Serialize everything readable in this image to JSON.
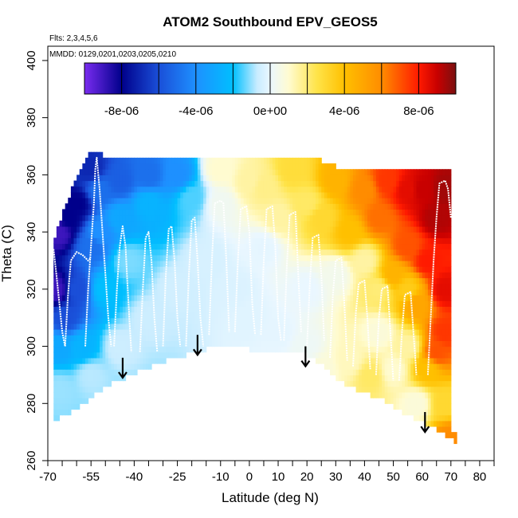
{
  "chart_data": {
    "type": "heatmap",
    "title": "ATOM2 Southbound EPV_GEOS5",
    "notes": [
      "Flts: 2,3,4,5,6",
      "MMDD: 0129,0201,0203,0205,0210"
    ],
    "xlabel": "Latitude (deg N)",
    "ylabel": "Theta (C)",
    "xlim": [
      -70,
      85
    ],
    "ylim": [
      260,
      405
    ],
    "x_ticks": [
      -70,
      -65,
      -60,
      -55,
      -50,
      -45,
      -40,
      -35,
      -30,
      -25,
      -20,
      -15,
      -10,
      -5,
      0,
      5,
      10,
      15,
      20,
      25,
      30,
      35,
      40,
      45,
      50,
      55,
      60,
      65,
      70,
      75,
      80,
      85
    ],
    "x_tick_labels": [
      {
        "value": -70,
        "label": "-70"
      },
      {
        "value": -55,
        "label": "-55"
      },
      {
        "value": -40,
        "label": "-40"
      },
      {
        "value": -25,
        "label": "-25"
      },
      {
        "value": -10,
        "label": "-10"
      },
      {
        "value": 0,
        "label": "0"
      },
      {
        "value": 10,
        "label": "10"
      },
      {
        "value": 20,
        "label": "20"
      },
      {
        "value": 30,
        "label": "30"
      },
      {
        "value": 40,
        "label": "40"
      },
      {
        "value": 50,
        "label": "50"
      },
      {
        "value": 60,
        "label": "60"
      },
      {
        "value": 70,
        "label": "70"
      },
      {
        "value": 80,
        "label": "80"
      }
    ],
    "y_ticks": [
      {
        "value": 260,
        "label": "260"
      },
      {
        "value": 280,
        "label": "280"
      },
      {
        "value": 300,
        "label": "300"
      },
      {
        "value": 320,
        "label": "320"
      },
      {
        "value": 340,
        "label": "340"
      },
      {
        "value": 360,
        "label": "360"
      },
      {
        "value": 380,
        "label": "380"
      },
      {
        "value": 400,
        "label": "400"
      }
    ],
    "colorbar": {
      "min": -1e-05,
      "max": 1e-05,
      "boundaries": [
        -1e-05,
        -8e-06,
        -6e-06,
        -4e-06,
        -2e-06,
        0,
        2e-06,
        4e-06,
        6e-06,
        8e-06,
        1e-05
      ],
      "tick_labels": [
        {
          "value": -8e-06,
          "label": "-8e-06"
        },
        {
          "value": -4e-06,
          "label": "-4e-06"
        },
        {
          "value": 0,
          "label": "0e+00"
        },
        {
          "value": 4e-06,
          "label": "4e-06"
        },
        {
          "value": 8e-06,
          "label": "8e-06"
        }
      ],
      "stops": [
        {
          "value": -1e-05,
          "color": "#7a2cf0"
        },
        {
          "value": -8e-06,
          "color": "#00008b"
        },
        {
          "value": -6e-06,
          "color": "#1a4fd8"
        },
        {
          "value": -4e-06,
          "color": "#1e90ff"
        },
        {
          "value": -2e-06,
          "color": "#00bfff"
        },
        {
          "value": -7e-07,
          "color": "#c8ecff"
        },
        {
          "value": 0,
          "color": "#eaf7ff"
        },
        {
          "value": 1e-06,
          "color": "#fffbd0"
        },
        {
          "value": 2.5e-06,
          "color": "#ffe44a"
        },
        {
          "value": 4e-06,
          "color": "#ffc000"
        },
        {
          "value": 6e-06,
          "color": "#ff8c00"
        },
        {
          "value": 8e-06,
          "color": "#ff1a00"
        },
        {
          "value": 9e-06,
          "color": "#c80000"
        },
        {
          "value": 1e-05,
          "color": "#7a1010"
        }
      ]
    },
    "domain_bottom_theta": [
      [
        -68,
        274
      ],
      [
        -62,
        277
      ],
      [
        -55,
        282
      ],
      [
        -48,
        287
      ],
      [
        -41,
        290
      ],
      [
        -34,
        293
      ],
      [
        -26,
        296
      ],
      [
        -18,
        298
      ],
      [
        -10,
        300.5
      ],
      [
        -5,
        300
      ],
      [
        0,
        299
      ],
      [
        10,
        298.5
      ],
      [
        18,
        298
      ],
      [
        25,
        294
      ],
      [
        30,
        289
      ],
      [
        35,
        286
      ],
      [
        45,
        282
      ],
      [
        55,
        276
      ],
      [
        65,
        271
      ],
      [
        72,
        266
      ]
    ],
    "domain_top_theta": [
      [
        -68,
        336
      ],
      [
        -64,
        348
      ],
      [
        -60,
        358
      ],
      [
        -56,
        366
      ],
      [
        -53,
        368
      ],
      [
        -51,
        366
      ],
      [
        -45,
        366
      ],
      [
        -38,
        366
      ],
      [
        -34,
        366
      ],
      [
        -28,
        366
      ],
      [
        -18,
        366
      ],
      [
        -10,
        365
      ],
      [
        0,
        364
      ],
      [
        10,
        365
      ],
      [
        20,
        366
      ],
      [
        30,
        362
      ],
      [
        40,
        362
      ],
      [
        50,
        362
      ],
      [
        60,
        362
      ],
      [
        68,
        362
      ],
      [
        70,
        362
      ]
    ],
    "epv_anchors": [
      {
        "lat": -67,
        "theta": 320,
        "value": -9e-06
      },
      {
        "lat": -66,
        "theta": 340,
        "value": -9e-06
      },
      {
        "lat": -63,
        "theta": 345,
        "value": -8e-06
      },
      {
        "lat": -60,
        "theta": 350,
        "value": -8e-06
      },
      {
        "lat": -55,
        "theta": 362,
        "value": -7e-06
      },
      {
        "lat": -52,
        "theta": 355,
        "value": -5e-06
      },
      {
        "lat": -45,
        "theta": 358,
        "value": -5.5e-06
      },
      {
        "lat": -35,
        "theta": 360,
        "value": -5e-06
      },
      {
        "lat": -25,
        "theta": 360,
        "value": -4e-06
      },
      {
        "lat": -64,
        "theta": 310,
        "value": -6e-06
      },
      {
        "lat": -60,
        "theta": 320,
        "value": -6e-06
      },
      {
        "lat": -55,
        "theta": 335,
        "value": -5e-06
      },
      {
        "lat": -52,
        "theta": 340,
        "value": -4e-06
      },
      {
        "lat": -45,
        "theta": 345,
        "value": -3e-06
      },
      {
        "lat": -35,
        "theta": 350,
        "value": -2.5e-06
      },
      {
        "lat": -20,
        "theta": 352,
        "value": -1.5e-06
      },
      {
        "lat": -66,
        "theta": 300,
        "value": -3e-06
      },
      {
        "lat": -58,
        "theta": 300,
        "value": -2.5e-06
      },
      {
        "lat": -50,
        "theta": 320,
        "value": -2e-06
      },
      {
        "lat": -42,
        "theta": 330,
        "value": -1.2e-06
      },
      {
        "lat": -66,
        "theta": 285,
        "value": -1e-06
      },
      {
        "lat": -55,
        "theta": 290,
        "value": -8e-07
      },
      {
        "lat": -45,
        "theta": 300,
        "value": -6e-07
      },
      {
        "lat": -35,
        "theta": 310,
        "value": -6e-07
      },
      {
        "lat": -25,
        "theta": 320,
        "value": -5e-07
      },
      {
        "lat": -15,
        "theta": 330,
        "value": -4e-07
      },
      {
        "lat": -5,
        "theta": 320,
        "value": -3e-07
      },
      {
        "lat": 0,
        "theta": 310,
        "value": -2e-07
      },
      {
        "lat": 5,
        "theta": 335,
        "value": -1e-07
      },
      {
        "lat": -10,
        "theta": 350,
        "value": 3e-07
      },
      {
        "lat": -10,
        "theta": 362,
        "value": 1e-06
      },
      {
        "lat": 0,
        "theta": 358,
        "value": 1.5e-06
      },
      {
        "lat": 5,
        "theta": 356,
        "value": 1.8e-06
      },
      {
        "lat": 10,
        "theta": 345,
        "value": 1.5e-06
      },
      {
        "lat": 15,
        "theta": 362,
        "value": 2.8e-06
      },
      {
        "lat": 20,
        "theta": 350,
        "value": 2.2e-06
      },
      {
        "lat": 25,
        "theta": 345,
        "value": 3e-06
      },
      {
        "lat": 30,
        "theta": 358,
        "value": 4.5e-06
      },
      {
        "lat": 35,
        "theta": 340,
        "value": 4e-06
      },
      {
        "lat": 40,
        "theta": 355,
        "value": 6e-06
      },
      {
        "lat": 45,
        "theta": 345,
        "value": 6.5e-06
      },
      {
        "lat": 48,
        "theta": 358,
        "value": 7.5e-06
      },
      {
        "lat": 55,
        "theta": 355,
        "value": 8.5e-06
      },
      {
        "lat": 60,
        "theta": 355,
        "value": 9e-06
      },
      {
        "lat": 65,
        "theta": 345,
        "value": 9.3e-06
      },
      {
        "lat": 68,
        "theta": 355,
        "value": 9.5e-06
      },
      {
        "lat": 55,
        "theta": 335,
        "value": 7e-06
      },
      {
        "lat": 62,
        "theta": 330,
        "value": 8e-06
      },
      {
        "lat": 68,
        "theta": 320,
        "value": 8.5e-06
      },
      {
        "lat": 68,
        "theta": 305,
        "value": 7.5e-06
      },
      {
        "lat": 65,
        "theta": 298,
        "value": 7e-06
      },
      {
        "lat": 62,
        "theta": 292,
        "value": 4e-06
      },
      {
        "lat": 50,
        "theta": 325,
        "value": 4.5e-06
      },
      {
        "lat": 58,
        "theta": 315,
        "value": 5e-06
      },
      {
        "lat": 45,
        "theta": 320,
        "value": 2e-06
      },
      {
        "lat": 40,
        "theta": 330,
        "value": 1.5e-06
      },
      {
        "lat": 30,
        "theta": 325,
        "value": 4e-07
      },
      {
        "lat": 20,
        "theta": 320,
        "value": 0
      },
      {
        "lat": 20,
        "theta": 300,
        "value": 2e-07
      },
      {
        "lat": 25,
        "theta": 292,
        "value": 8e-07
      },
      {
        "lat": 35,
        "theta": 295,
        "value": 1.2e-06
      },
      {
        "lat": 42,
        "theta": 290,
        "value": 2.2e-06
      },
      {
        "lat": 50,
        "theta": 292,
        "value": 1e-06
      },
      {
        "lat": 55,
        "theta": 300,
        "value": 1.5e-06
      },
      {
        "lat": 58,
        "theta": 280,
        "value": 8e-07
      },
      {
        "lat": 68,
        "theta": 280,
        "value": 3e-06
      },
      {
        "lat": 70,
        "theta": 268,
        "value": 6e-06
      },
      {
        "lat": 45,
        "theta": 305,
        "value": 8e-07
      },
      {
        "lat": 55,
        "theta": 320,
        "value": 3.5e-06
      },
      {
        "lat": 10,
        "theta": 305,
        "value": -1e-07
      }
    ],
    "arrows": [
      {
        "lat": -44,
        "theta_top": 296,
        "theta_tip": 289
      },
      {
        "lat": -18,
        "theta_top": 304,
        "theta_tip": 297
      },
      {
        "lat": 19.5,
        "theta_top": 300,
        "theta_tip": 293
      },
      {
        "lat": 61,
        "theta_top": 277,
        "theta_tip": 270
      }
    ],
    "flight_tracks": [
      [
        [
          -68,
          334
        ],
        [
          -67,
          325
        ],
        [
          -66,
          315
        ],
        [
          -65,
          305
        ],
        [
          -64,
          300
        ]
      ],
      [
        [
          -64,
          300
        ],
        [
          -63,
          318
        ],
        [
          -62,
          330
        ],
        [
          -60,
          333
        ],
        [
          -58,
          332
        ],
        [
          -56,
          330
        ],
        [
          -55,
          331
        ]
      ],
      [
        [
          -57,
          300
        ],
        [
          -56,
          320
        ],
        [
          -55,
          335
        ],
        [
          -54,
          350
        ],
        [
          -53.5,
          362
        ],
        [
          -53,
          366
        ],
        [
          -52,
          355
        ],
        [
          -51,
          340
        ],
        [
          -50,
          325
        ],
        [
          -49,
          310
        ],
        [
          -48,
          300
        ]
      ],
      [
        [
          -47,
          300
        ],
        [
          -46,
          320
        ],
        [
          -45,
          335
        ],
        [
          -44,
          342
        ],
        [
          -43,
          335
        ],
        [
          -42,
          315
        ],
        [
          -41,
          298
        ]
      ],
      [
        [
          -38,
          298
        ],
        [
          -37,
          320
        ],
        [
          -36,
          338
        ],
        [
          -35,
          340
        ],
        [
          -34,
          330
        ],
        [
          -33,
          310
        ],
        [
          -32,
          298
        ]
      ],
      [
        [
          -30,
          300
        ],
        [
          -29,
          325
        ],
        [
          -28,
          341
        ],
        [
          -27,
          342
        ],
        [
          -26,
          330
        ],
        [
          -25,
          310
        ],
        [
          -24,
          300
        ]
      ],
      [
        [
          -22,
          300
        ],
        [
          -21,
          325
        ],
        [
          -20,
          344
        ],
        [
          -19,
          345
        ],
        [
          -18,
          330
        ],
        [
          -17,
          310
        ],
        [
          -16,
          300
        ]
      ],
      [
        [
          -14,
          304
        ],
        [
          -13,
          330
        ],
        [
          -12,
          350
        ],
        [
          -10,
          351
        ],
        [
          -9,
          350
        ],
        [
          -8,
          330
        ],
        [
          -7,
          305
        ]
      ],
      [
        [
          -5,
          305
        ],
        [
          -4,
          330
        ],
        [
          -3,
          348
        ],
        [
          -1,
          349
        ],
        [
          0,
          340
        ],
        [
          1,
          315
        ],
        [
          2,
          304
        ]
      ],
      [
        [
          4,
          304
        ],
        [
          5,
          330
        ],
        [
          6,
          348
        ],
        [
          8,
          349
        ],
        [
          9,
          335
        ],
        [
          10,
          310
        ],
        [
          11,
          302
        ]
      ],
      [
        [
          12,
          302
        ],
        [
          13,
          328
        ],
        [
          14,
          346
        ],
        [
          16,
          347
        ],
        [
          17,
          325
        ],
        [
          18,
          305
        ]
      ],
      [
        [
          20,
          300
        ],
        [
          21,
          322
        ],
        [
          22,
          338
        ],
        [
          24,
          339
        ],
        [
          25,
          325
        ],
        [
          26,
          302
        ]
      ],
      [
        [
          28,
          296
        ],
        [
          29,
          318
        ],
        [
          30,
          330
        ],
        [
          32,
          331
        ],
        [
          33,
          315
        ],
        [
          34,
          295
        ]
      ],
      [
        [
          36,
          293
        ],
        [
          37,
          312
        ],
        [
          38,
          322
        ],
        [
          40,
          323
        ],
        [
          41,
          310
        ],
        [
          42,
          292
        ]
      ],
      [
        [
          44,
          290
        ],
        [
          45,
          310
        ],
        [
          46,
          320
        ],
        [
          48,
          321
        ],
        [
          49,
          305
        ],
        [
          50,
          288
        ]
      ],
      [
        [
          52,
          288
        ],
        [
          53,
          305
        ],
        [
          54,
          318
        ],
        [
          56,
          319
        ],
        [
          57,
          305
        ],
        [
          58,
          290
        ]
      ],
      [
        [
          62,
          290
        ],
        [
          63,
          310
        ],
        [
          64,
          330
        ],
        [
          65,
          345
        ],
        [
          66,
          357
        ],
        [
          68,
          358
        ],
        [
          69,
          355
        ],
        [
          70,
          345
        ]
      ]
    ]
  }
}
